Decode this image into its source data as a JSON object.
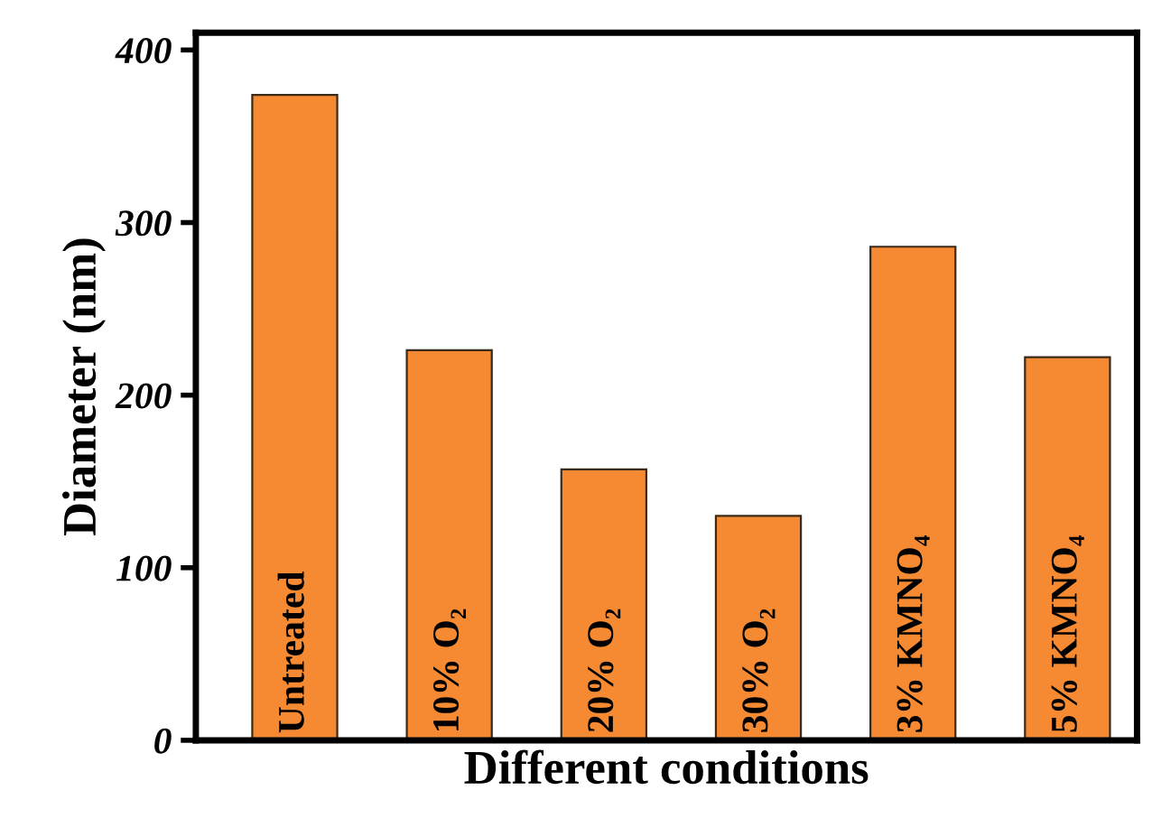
{
  "chart_data": {
    "type": "bar",
    "xlabel": "Different conditions",
    "ylabel": "Diameter (nm)",
    "categories": [
      "Untreated",
      "10% O₂",
      "20% O₂",
      "30% O₂",
      "3% KMNO₄",
      "5% KMNO₄"
    ],
    "values": [
      374,
      226,
      157,
      130,
      286,
      222
    ],
    "color": "#f58a32",
    "ylim": [
      0,
      410
    ],
    "yticks": [
      0,
      100,
      200,
      300,
      400
    ],
    "grid": false,
    "legend": false
  }
}
